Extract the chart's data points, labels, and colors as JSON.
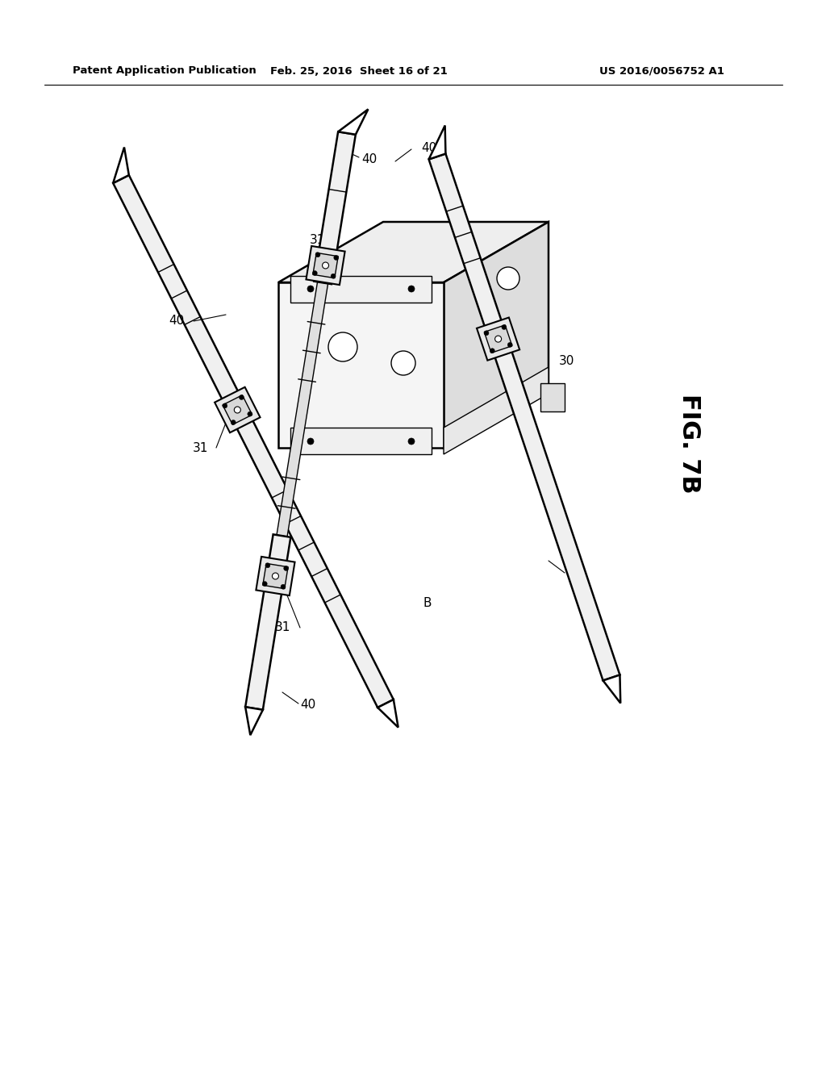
{
  "header_left": "Patent Application Publication",
  "header_mid": "Feb. 25, 2016  Sheet 16 of 21",
  "header_right": "US 2016/0056752 A1",
  "bg_color": "#ffffff",
  "line_color": "#000000",
  "fig_label": "FIG. 7B"
}
